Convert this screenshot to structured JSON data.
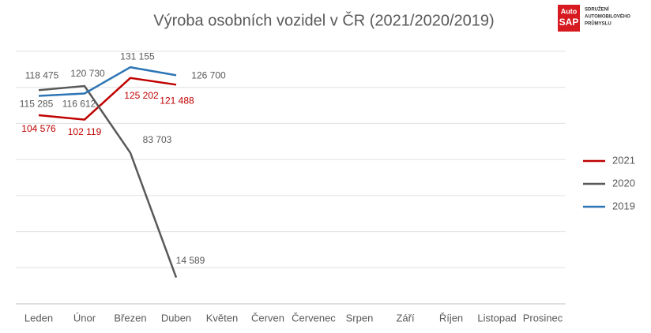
{
  "chart_data": {
    "type": "line",
    "title": "Výroba osobních vozidel v ČR (2021/2020/2019)",
    "logo": {
      "mark_top": "Auto",
      "mark_bottom": "SAP",
      "lines": [
        "SDRUŽENÍ",
        "AUTOMOBILOVÉHO",
        "PRŮMYSLU"
      ]
    },
    "categories": [
      "Leden",
      "Únor",
      "Březen",
      "Duben",
      "Květen",
      "Červen",
      "Červenec",
      "Srpen",
      "Září",
      "Říjen",
      "Listopad",
      "Prosinec"
    ],
    "series": [
      {
        "name": "2021",
        "color": "#c00000",
        "values": [
          104576,
          102119,
          125202,
          121488,
          null,
          null,
          null,
          null,
          null,
          null,
          null,
          null
        ],
        "value_labels": [
          "104 576",
          "102 119",
          "125 202",
          "121 488",
          null,
          null,
          null,
          null,
          null,
          null,
          null,
          null
        ]
      },
      {
        "name": "2020",
        "color": "#595959",
        "values": [
          118475,
          120730,
          83703,
          14589,
          null,
          null,
          null,
          null,
          null,
          null,
          null,
          null
        ],
        "value_labels": [
          "118 475",
          "120 730",
          "83 703",
          "14 589",
          null,
          null,
          null,
          null,
          null,
          null,
          null,
          null
        ]
      },
      {
        "name": "2019",
        "color": "#2e75b6",
        "values": [
          115285,
          116612,
          131155,
          126700,
          null,
          null,
          null,
          null,
          null,
          null,
          null,
          null
        ],
        "value_labels": [
          "115 285",
          "116 612",
          "131 155",
          "126 700",
          null,
          null,
          null,
          null,
          null,
          null,
          null,
          null
        ]
      }
    ],
    "ylim": [
      0,
      140000
    ],
    "yticks": [
      0,
      20000,
      40000,
      60000,
      80000,
      100000,
      120000,
      140000
    ],
    "grid": true,
    "legend": "right"
  }
}
